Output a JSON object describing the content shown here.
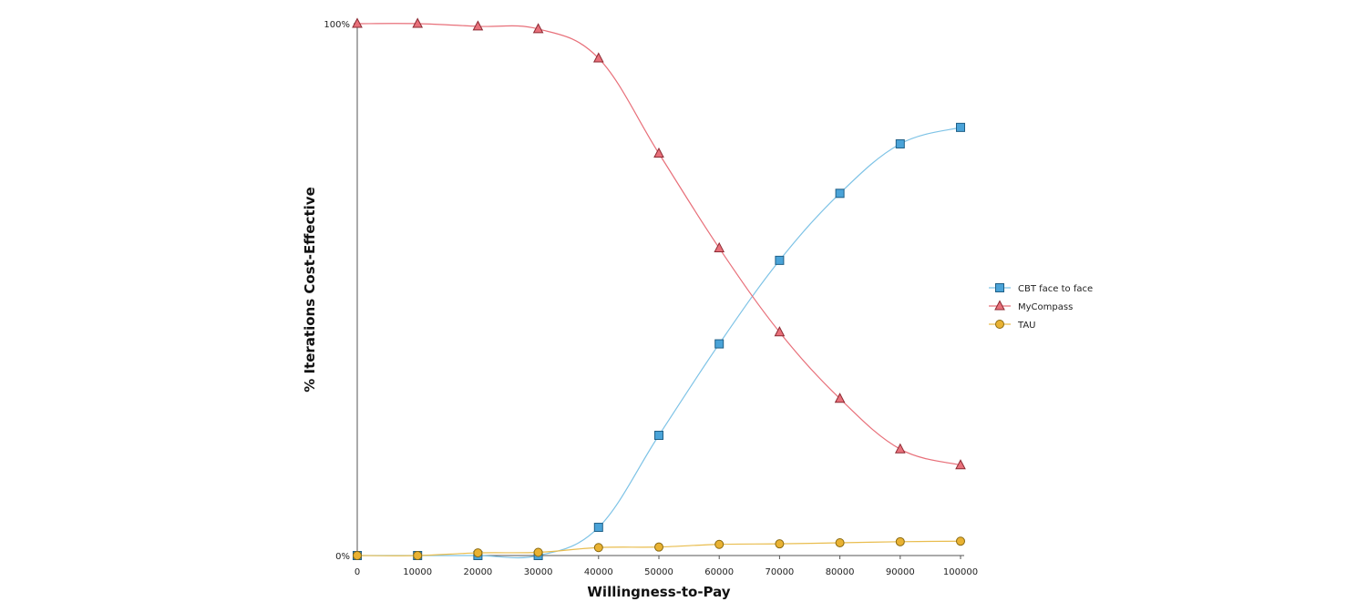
{
  "chart_data": {
    "type": "line",
    "title": "",
    "xlabel": "Willingness-to-Pay",
    "ylabel": "% Iterations Cost-Effective",
    "x": [
      0,
      10000,
      20000,
      30000,
      40000,
      50000,
      60000,
      70000,
      80000,
      90000,
      100000
    ],
    "x_tick_labels": [
      "0",
      "10000",
      "20000",
      "30000",
      "40000",
      "50000",
      "60000",
      "70000",
      "80000",
      "90000",
      "100000"
    ],
    "y_tick_labels": [
      "100%",
      "0%"
    ],
    "xlim": [
      0,
      100000
    ],
    "ylim": [
      0,
      1
    ],
    "grid": false,
    "legend_position": "right",
    "series": [
      {
        "name": "CBT face to face",
        "marker": "square",
        "color": "#7ec3e6",
        "marker_fill": "#4aa3d8",
        "values": [
          0.0,
          0.0,
          0.0,
          0.0,
          0.053,
          0.226,
          0.398,
          0.555,
          0.681,
          0.774,
          0.805
        ]
      },
      {
        "name": "MyCompass",
        "marker": "triangle",
        "color": "#e8707a",
        "marker_fill": "#e8707a",
        "values": [
          1.0,
          1.0,
          0.995,
          0.99,
          0.935,
          0.756,
          0.578,
          0.42,
          0.295,
          0.2,
          0.17
        ]
      },
      {
        "name": "TAU",
        "marker": "circle",
        "color": "#e9bd4e",
        "marker_fill": "#e9b232",
        "values": [
          0.0,
          0.0,
          0.005,
          0.006,
          0.015,
          0.016,
          0.021,
          0.022,
          0.024,
          0.026,
          0.027
        ]
      }
    ]
  }
}
